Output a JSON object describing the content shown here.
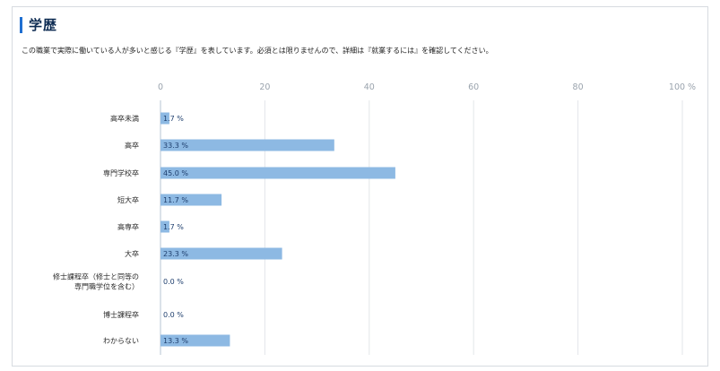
{
  "section": {
    "title": "学歴",
    "description": "この職業で実際に働いている人が多いと感じる『学歴』を表しています。必須とは限りませんので、詳細は『就業するには』を確認してください。"
  },
  "chart_data": {
    "type": "bar",
    "orientation": "horizontal",
    "title": "",
    "xlabel": "",
    "ylabel": "",
    "xlim": [
      0,
      100
    ],
    "unit": "%",
    "ticks": [
      "0",
      "20",
      "40",
      "60",
      "80",
      "100 %"
    ],
    "tick_values": [
      0,
      20,
      40,
      60,
      80,
      100
    ],
    "categories": [
      [
        "高卒未満"
      ],
      [
        "高卒"
      ],
      [
        "専門学校卒"
      ],
      [
        "短大卒"
      ],
      [
        "高専卒"
      ],
      [
        "大卒"
      ],
      [
        "修士課程卒（修士と同等の",
        "専門職学位を含む）"
      ],
      [
        "博士課程卒"
      ],
      [
        "わからない"
      ]
    ],
    "values": [
      1.7,
      33.3,
      45.0,
      11.7,
      1.7,
      23.3,
      0.0,
      0.0,
      13.3
    ],
    "value_labels": [
      "1.7 %",
      "33.3 %",
      "45.0 %",
      "11.7 %",
      "1.7 %",
      "23.3 %",
      "0.0 %",
      "0.0 %",
      "13.3 %"
    ],
    "bar_color": "#8db9e3",
    "grid": true,
    "grid_color": "#e3e6ea"
  }
}
